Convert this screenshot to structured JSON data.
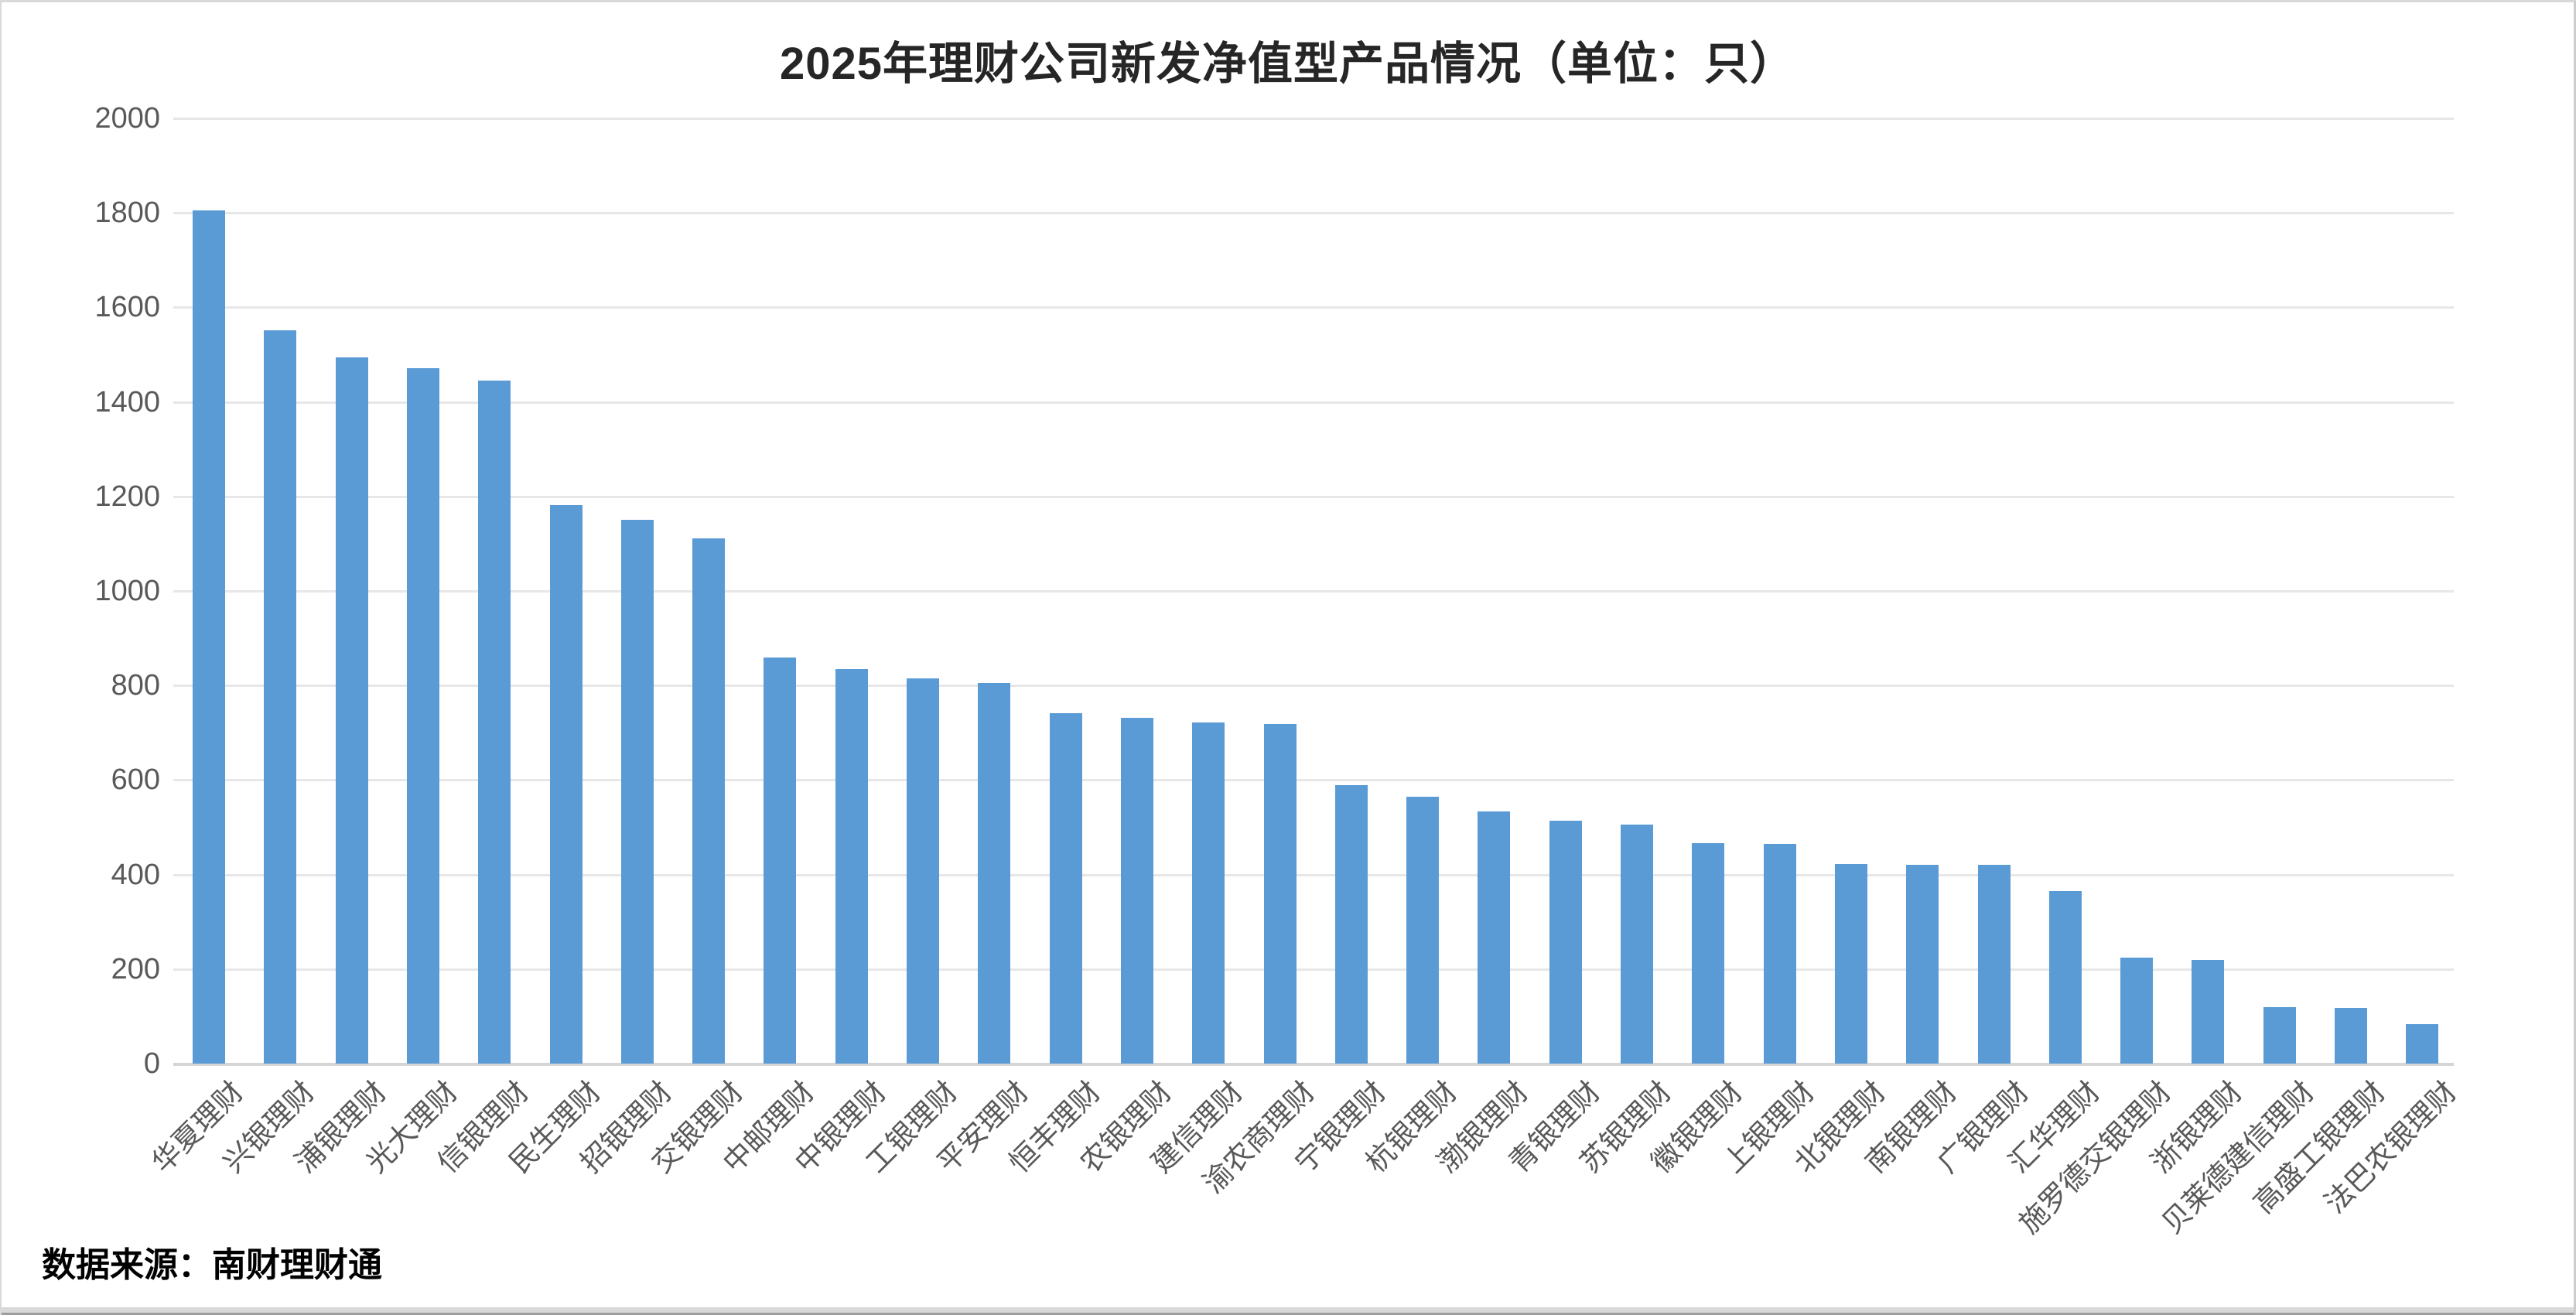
{
  "title": "2025年理财公司新发净值型产品情况（单位：只）",
  "source": "数据来源：南财理财通",
  "colors": {
    "bar": "#5b9bd5",
    "gridline": "#e7e7e7",
    "axis_baseline": "#d5d5d5",
    "tick_label": "#595959",
    "title_text": "#262626",
    "source_text": "#000000",
    "window_edge": "#d9d9d9"
  },
  "chart_data": {
    "type": "bar",
    "title": "2025年理财公司新发净值型产品情况（单位：只）",
    "xlabel": "",
    "ylabel": "",
    "ylim": [
      0,
      2000
    ],
    "ytick_step": 200,
    "yticks": [
      0,
      200,
      400,
      600,
      800,
      1000,
      1200,
      1400,
      1600,
      1800,
      2000
    ],
    "grid": true,
    "legend": false,
    "categories": [
      "华夏理财",
      "兴银理财",
      "浦银理财",
      "光大理财",
      "信银理财",
      "民生理财",
      "招银理财",
      "交银理财",
      "中邮理财",
      "中银理财",
      "工银理财",
      "平安理财",
      "恒丰理财",
      "农银理财",
      "建信理财",
      "渝农商理财",
      "宁银理财",
      "杭银理财",
      "渤银理财",
      "青银理财",
      "苏银理财",
      "徽银理财",
      "上银理财",
      "北银理财",
      "南银理财",
      "广银理财",
      "汇华理财",
      "施罗德交银理财",
      "浙银理财",
      "贝莱德建信理财",
      "高盛工银理财",
      "法巴农银理财"
    ],
    "values": [
      1805,
      1552,
      1495,
      1471,
      1445,
      1182,
      1150,
      1112,
      860,
      834,
      815,
      806,
      741,
      732,
      722,
      718,
      590,
      564,
      533,
      514,
      506,
      466,
      465,
      422,
      421,
      420,
      365,
      224,
      220,
      119,
      118,
      83
    ]
  }
}
